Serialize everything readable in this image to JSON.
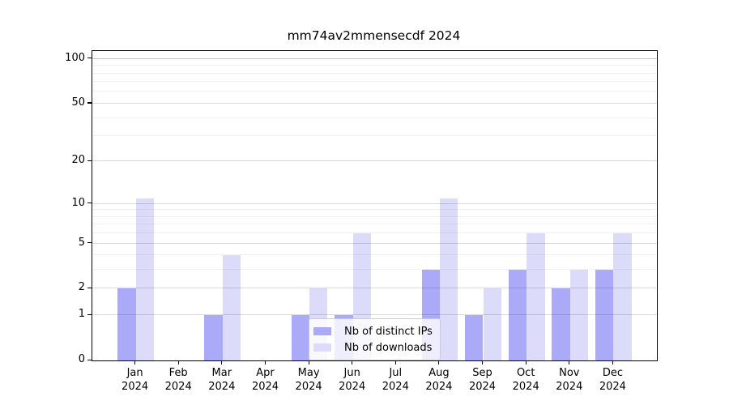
{
  "title": "mm74av2mmensecdf 2024",
  "colors": {
    "ips_bar": "#aaaaf8",
    "downloads_bar": "#dcdcfa",
    "axis": "#000000",
    "text": "#000000",
    "grid_top": "rgba(0,0,0,0.24)",
    "grid_major": "rgba(0,0,0,0.15)",
    "grid_minor": "rgba(0,0,0,0.055)",
    "legend_border": "#cccccc",
    "legend_bg": "rgba(255,255,255,0.8)"
  },
  "chart_data": {
    "type": "bar",
    "title": "mm74av2mmensecdf 2024",
    "categories": [
      "Jan 2024",
      "Feb 2024",
      "Mar 2024",
      "Apr 2024",
      "May 2024",
      "Jun 2024",
      "Jul 2024",
      "Aug 2024",
      "Sep 2024",
      "Oct 2024",
      "Nov 2024",
      "Dec 2024"
    ],
    "series": [
      {
        "name": "Nb of distinct IPs",
        "values": [
          2,
          0,
          1,
          0,
          1,
          1,
          0,
          3,
          1,
          3,
          2,
          3
        ]
      },
      {
        "name": "Nb of downloads",
        "values": [
          11,
          0,
          4,
          0,
          2,
          6,
          0,
          11,
          2,
          6,
          3,
          6
        ]
      }
    ],
    "xlabel": "",
    "ylabel": "",
    "yscale": "log1p",
    "yticks": [
      0,
      1,
      2,
      5,
      10,
      20,
      50,
      100
    ],
    "yticks_minor": [
      3,
      4,
      6,
      7,
      8,
      9,
      30,
      40,
      60,
      70,
      80,
      90
    ],
    "ylim": [
      0,
      113
    ],
    "grid": true,
    "legend_position": "lower center"
  }
}
